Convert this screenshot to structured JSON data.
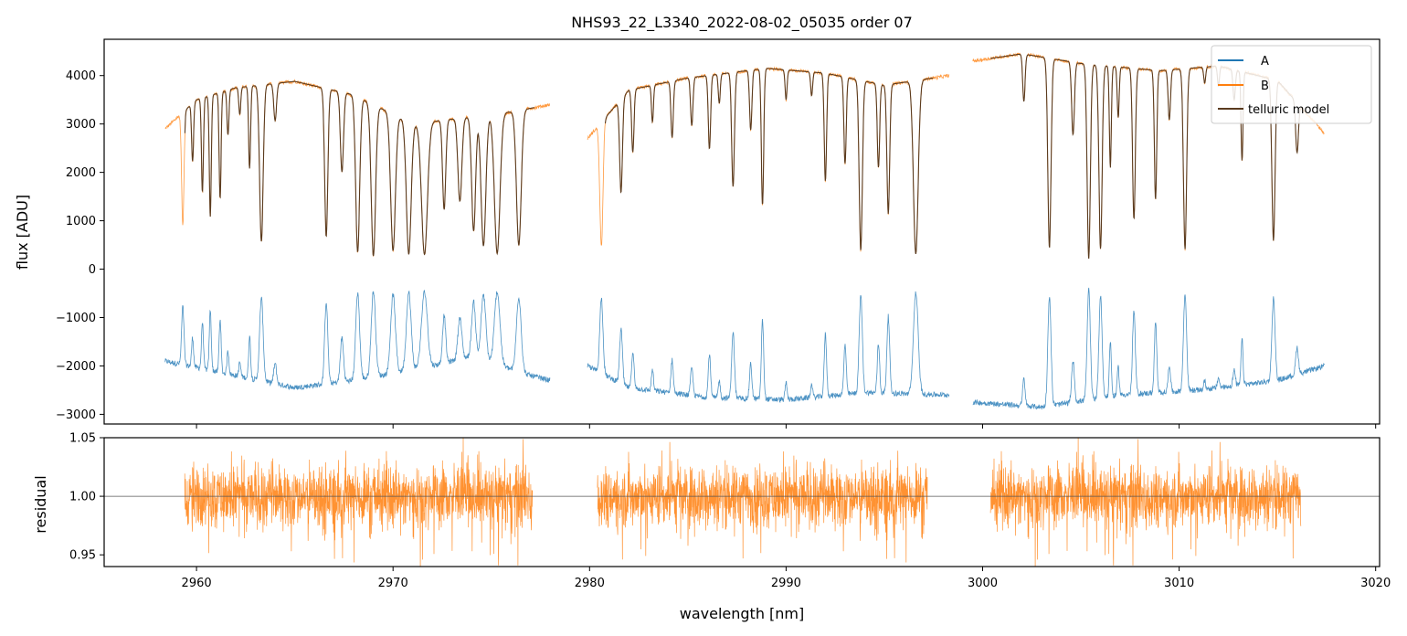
{
  "chart_data": [
    {
      "type": "line",
      "title": "NHS93_22_L3340_2022-08-02_05035  order 07",
      "xlabel": "",
      "ylabel": "flux [ADU]",
      "xlim": [
        2955.3,
        3020.2
      ],
      "ylim": [
        -3200,
        4750
      ],
      "yticks": [
        -3000,
        -2000,
        -1000,
        0,
        1000,
        2000,
        3000,
        4000
      ],
      "grid": false,
      "legend": {
        "placement": "top-right",
        "entries": [
          "A",
          "B",
          "telluric model"
        ]
      },
      "segments": [
        [
          2958.4,
          2978.0
        ],
        [
          2979.9,
          2998.3
        ],
        [
          2999.5,
          3017.4
        ]
      ],
      "series": [
        {
          "name": "A",
          "color": "#1f77b4",
          "continuum": [
            [
              2958.4,
              -1900
            ],
            [
              2962,
              -2200
            ],
            [
              2965,
              -2450
            ],
            [
              2968,
              -2300
            ],
            [
              2972,
              -2000
            ],
            [
              2974,
              -1800
            ],
            [
              2977,
              -2200
            ],
            [
              2978.0,
              -2300
            ],
            [
              2979.9,
              -2000
            ],
            [
              2982,
              -2450
            ],
            [
              2986,
              -2650
            ],
            [
              2990,
              -2700
            ],
            [
              2994,
              -2550
            ],
            [
              2998.3,
              -2600
            ],
            [
              2999.5,
              -2750
            ],
            [
              3003,
              -2850
            ],
            [
              3007,
              -2600
            ],
            [
              3011,
              -2500
            ],
            [
              3015,
              -2300
            ],
            [
              3017.4,
              -2000
            ]
          ],
          "peak_level": -300
        },
        {
          "name": "B",
          "color": "#ff7f0e",
          "continuum": [
            [
              2958.4,
              2900
            ],
            [
              2960,
              3500
            ],
            [
              2962,
              3750
            ],
            [
              2965,
              3880
            ],
            [
              2968,
              3600
            ],
            [
              2971,
              3000
            ],
            [
              2973,
              3100
            ],
            [
              2976,
              3250
            ],
            [
              2978.0,
              3400
            ],
            [
              2979.9,
              2700
            ],
            [
              2982,
              3700
            ],
            [
              2985,
              3950
            ],
            [
              2989,
              4150
            ],
            [
              2992,
              4050
            ],
            [
              2995,
              3800
            ],
            [
              2998.3,
              4000
            ],
            [
              2999.5,
              4300
            ],
            [
              3002,
              4450
            ],
            [
              3005,
              4250
            ],
            [
              3009,
              4100
            ],
            [
              3012,
              4200
            ],
            [
              3015,
              3900
            ],
            [
              3017.4,
              2800
            ]
          ]
        },
        {
          "name": "telluric model",
          "color": "#5a3b1f",
          "range": [
            2959.4,
            3016.2
          ],
          "absorption_lines": [
            [
              2959.3,
              0.72,
              0.06
            ],
            [
              2959.8,
              0.35,
              0.05
            ],
            [
              2960.3,
              0.55,
              0.05
            ],
            [
              2960.7,
              0.7,
              0.05
            ],
            [
              2961.2,
              0.6,
              0.05
            ],
            [
              2961.6,
              0.25,
              0.05
            ],
            [
              2962.2,
              0.15,
              0.05
            ],
            [
              2962.7,
              0.45,
              0.05
            ],
            [
              2963.3,
              0.85,
              0.09
            ],
            [
              2964.0,
              0.2,
              0.07
            ],
            [
              2966.6,
              0.82,
              0.08
            ],
            [
              2967.4,
              0.45,
              0.08
            ],
            [
              2968.2,
              0.9,
              0.1
            ],
            [
              2969.0,
              0.92,
              0.11
            ],
            [
              2970.0,
              0.88,
              0.12
            ],
            [
              2970.8,
              0.9,
              0.12
            ],
            [
              2971.6,
              0.9,
              0.15
            ],
            [
              2972.6,
              0.6,
              0.08
            ],
            [
              2973.4,
              0.55,
              0.1
            ],
            [
              2974.1,
              0.75,
              0.1
            ],
            [
              2974.6,
              0.85,
              0.12
            ],
            [
              2975.3,
              0.9,
              0.14
            ],
            [
              2976.4,
              0.85,
              0.12
            ],
            [
              2980.6,
              0.85,
              0.08
            ],
            [
              2981.6,
              0.55,
              0.07
            ],
            [
              2982.2,
              0.35,
              0.06
            ],
            [
              2983.2,
              0.2,
              0.05
            ],
            [
              2984.2,
              0.3,
              0.06
            ],
            [
              2985.2,
              0.25,
              0.06
            ],
            [
              2986.1,
              0.38,
              0.06
            ],
            [
              2986.6,
              0.15,
              0.05
            ],
            [
              2987.3,
              0.58,
              0.07
            ],
            [
              2988.2,
              0.3,
              0.06
            ],
            [
              2988.8,
              0.68,
              0.06
            ],
            [
              2990.0,
              0.15,
              0.05
            ],
            [
              2991.3,
              0.12,
              0.05
            ],
            [
              2992.0,
              0.55,
              0.06
            ],
            [
              2993.0,
              0.45,
              0.06
            ],
            [
              2993.8,
              0.9,
              0.08
            ],
            [
              2994.7,
              0.45,
              0.06
            ],
            [
              2995.2,
              0.7,
              0.07
            ],
            [
              2996.6,
              0.92,
              0.12
            ],
            [
              3002.1,
              0.22,
              0.06
            ],
            [
              3003.4,
              0.9,
              0.08
            ],
            [
              3004.6,
              0.35,
              0.07
            ],
            [
              3005.4,
              0.95,
              0.08
            ],
            [
              3006.0,
              0.9,
              0.08
            ],
            [
              3006.5,
              0.5,
              0.05
            ],
            [
              3006.9,
              0.25,
              0.05
            ],
            [
              3007.7,
              0.75,
              0.07
            ],
            [
              3008.8,
              0.65,
              0.06
            ],
            [
              3009.5,
              0.25,
              0.06
            ],
            [
              3010.3,
              0.9,
              0.08
            ],
            [
              3011.3,
              0.08,
              0.05
            ],
            [
              3012.0,
              0.1,
              0.05
            ],
            [
              3012.8,
              0.15,
              0.06
            ],
            [
              3013.2,
              0.45,
              0.05
            ],
            [
              3014.8,
              0.85,
              0.08
            ],
            [
              3016.0,
              0.3,
              0.07
            ]
          ]
        }
      ]
    },
    {
      "type": "line",
      "title": "",
      "xlabel": "wavelength [nm]",
      "ylabel": "residual",
      "xlim": [
        2955.3,
        3020.2
      ],
      "ylim": [
        0.94,
        1.05
      ],
      "xticks": [
        2960,
        2970,
        2980,
        2990,
        3000,
        3010,
        3020
      ],
      "yticks": [
        0.95,
        1.0,
        1.05
      ],
      "reference_line": 1.0,
      "grid": false,
      "series": [
        {
          "name": "B",
          "color": "#ff7f0e",
          "segments": [
            [
              2959.4,
              2977.1
            ],
            [
              2980.4,
              2997.2
            ],
            [
              3000.4,
              3016.2
            ]
          ],
          "center": 1.0,
          "scatter": 0.02
        }
      ]
    }
  ]
}
